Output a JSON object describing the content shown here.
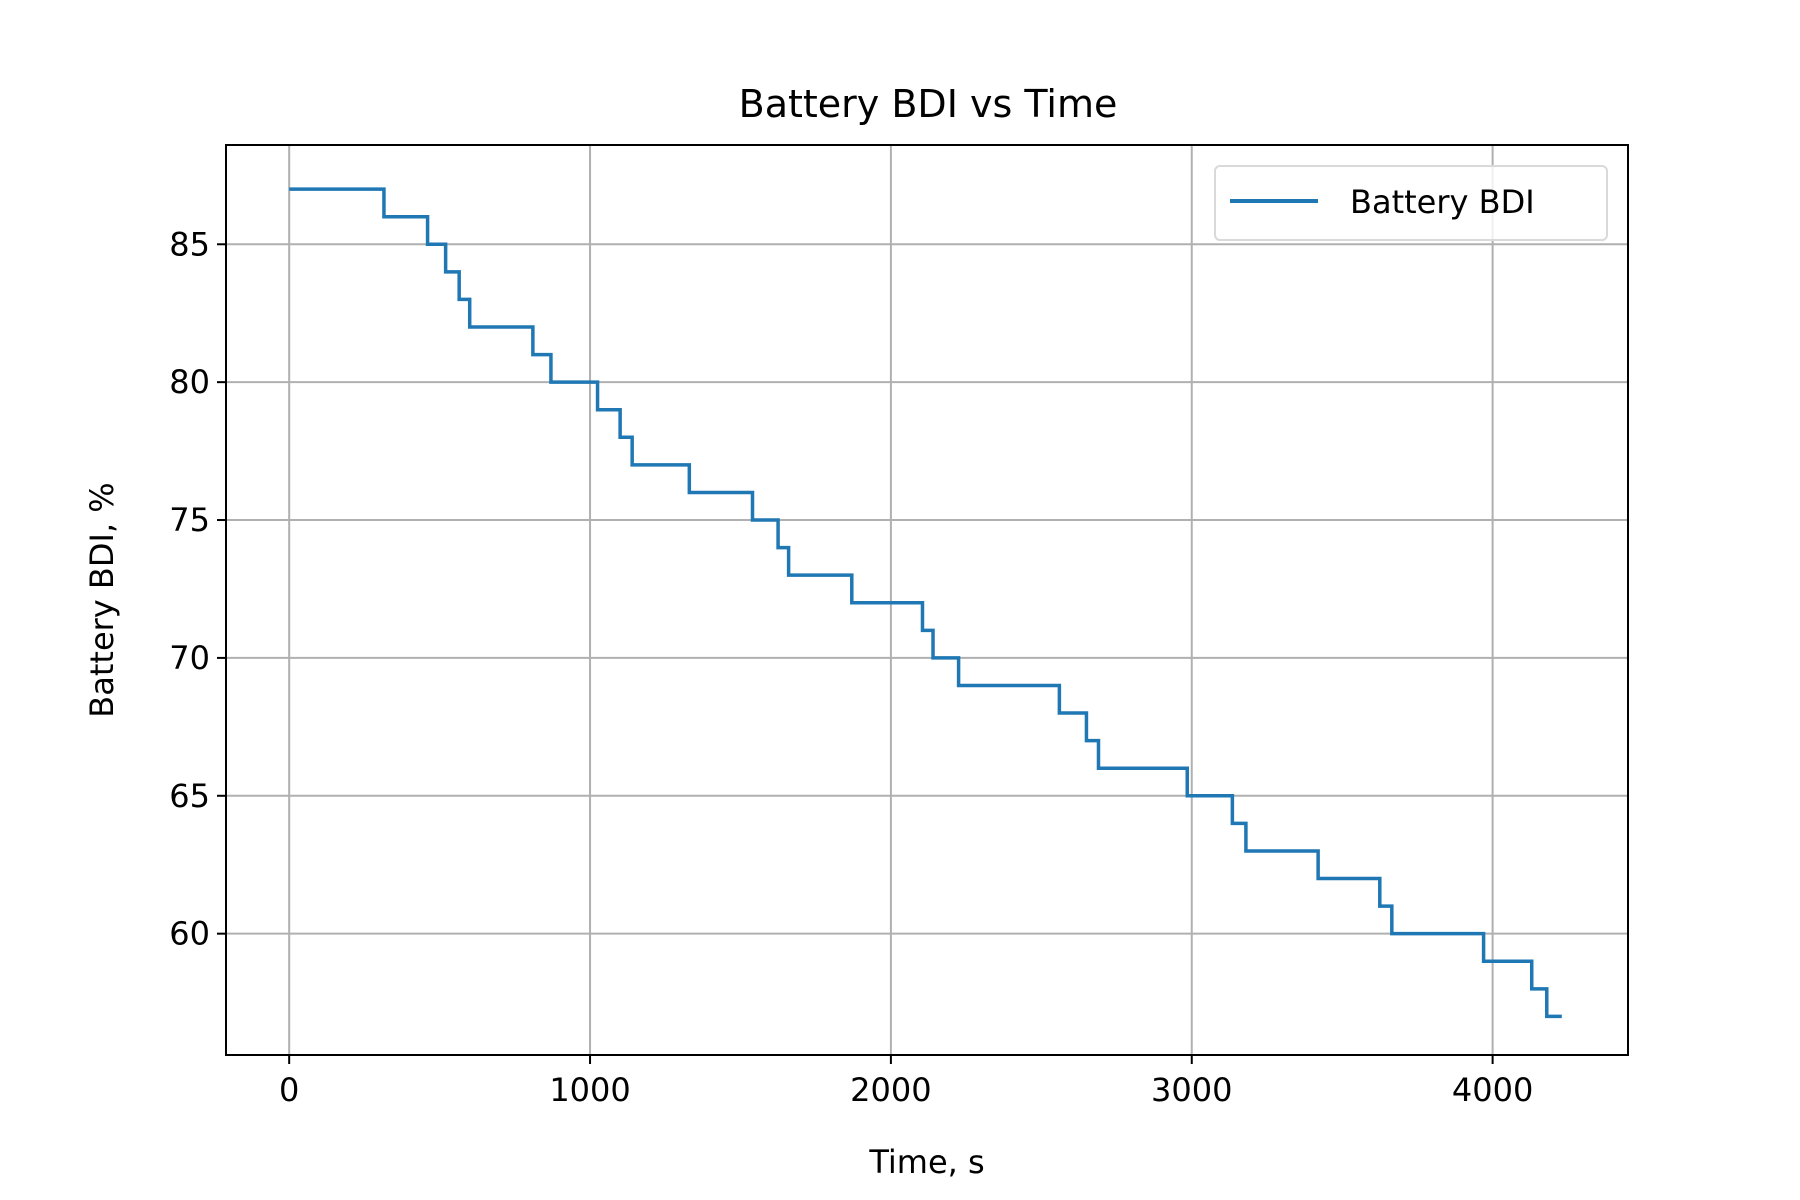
{
  "chart_data": {
    "type": "line",
    "step": true,
    "title": "Battery BDI vs Time",
    "xlabel": "Time, s",
    "ylabel": "Battery BDI, %",
    "xlim": [
      -210,
      4450
    ],
    "ylim": [
      55.6,
      88.6
    ],
    "xticks": [
      0,
      1000,
      2000,
      3000,
      4000
    ],
    "yticks": [
      60,
      65,
      70,
      75,
      80,
      85
    ],
    "grid": true,
    "legend_position": "top-right",
    "series": [
      {
        "name": "Battery BDI",
        "color": "#1f77b4",
        "x": [
          0,
          315,
          460,
          520,
          565,
          600,
          810,
          870,
          1025,
          1100,
          1140,
          1330,
          1540,
          1625,
          1660,
          1870,
          2105,
          2140,
          2225,
          2560,
          2650,
          2690,
          2985,
          3135,
          3180,
          3420,
          3625,
          3665,
          3970,
          4130,
          4180,
          4230
        ],
        "y": [
          87,
          86,
          85,
          84,
          83,
          82,
          81,
          80,
          79,
          78,
          77,
          76,
          75,
          74,
          73,
          72,
          71,
          70,
          69,
          68,
          67,
          66,
          65,
          64,
          63,
          62,
          61,
          60,
          59,
          58,
          57,
          57
        ]
      }
    ]
  }
}
